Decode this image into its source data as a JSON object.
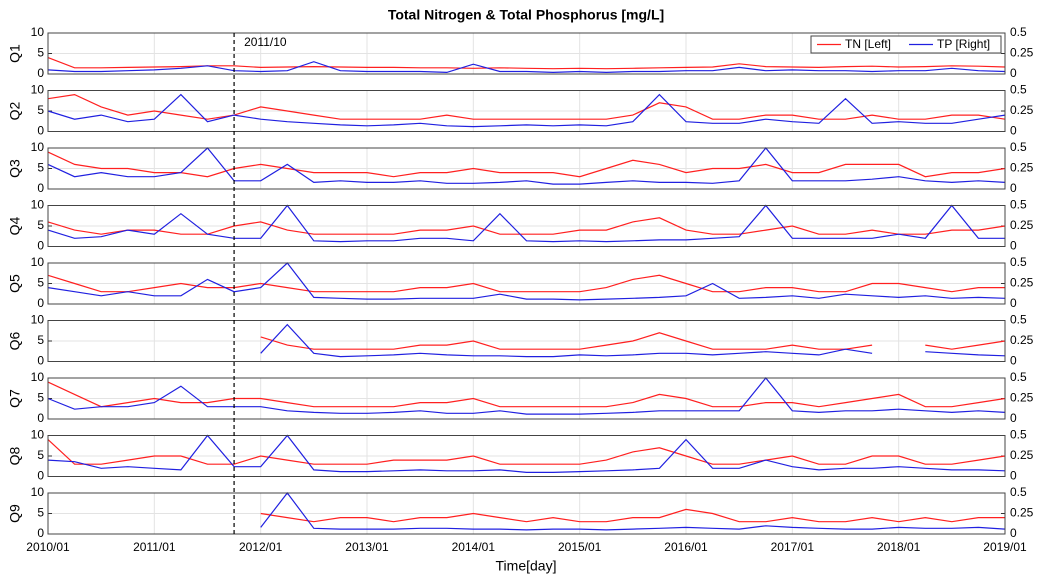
{
  "chart_data": {
    "type": "line",
    "title": "Total Nitrogen & Total Phosphorus [mg/L]",
    "xlabel": "Time[day]",
    "annotation": "2011/10",
    "x": [
      "2010/01",
      "2010/04",
      "2010/07",
      "2010/10",
      "2011/01",
      "2011/04",
      "2011/07",
      "2011/10",
      "2012/01",
      "2012/04",
      "2012/07",
      "2012/10",
      "2013/01",
      "2013/04",
      "2013/07",
      "2013/10",
      "2014/01",
      "2014/04",
      "2014/07",
      "2014/10",
      "2015/01",
      "2015/04",
      "2015/07",
      "2015/10",
      "2016/01",
      "2016/04",
      "2016/07",
      "2016/10",
      "2017/01",
      "2017/04",
      "2017/07",
      "2017/10",
      "2018/01",
      "2018/04",
      "2018/07",
      "2018/10",
      "2019/01"
    ],
    "xlim": [
      "2010/01",
      "2019/01"
    ],
    "xticks": [
      "2010/01",
      "2011/01",
      "2012/01",
      "2013/01",
      "2014/01",
      "2015/01",
      "2016/01",
      "2017/01",
      "2018/01",
      "2019/01"
    ],
    "ylim": [
      0,
      10
    ],
    "yticks": [
      0,
      5,
      10
    ],
    "y2lim": [
      0,
      0.5
    ],
    "y2ticks": [
      0,
      0.25,
      0.5
    ],
    "grid": true,
    "legend": "upper right",
    "panels": [
      {
        "label": "Q1",
        "series": [
          {
            "name": "TN [Left]",
            "color": "#ff2020",
            "values": [
              4,
              1.5,
              1.5,
              1.6,
              1.7,
              1.8,
              2,
              2,
              1.6,
              1.7,
              1.8,
              1.7,
              1.6,
              1.6,
              1.5,
              1.5,
              1.4,
              1.5,
              1.4,
              1.3,
              1.4,
              1.3,
              1.4,
              1.5,
              1.6,
              1.7,
              2.5,
              1.8,
              1.7,
              1.6,
              1.8,
              1.9,
              1.7,
              1.8,
              2,
              1.9,
              1.7
            ]
          },
          {
            "name": "TP [Right]",
            "color": "#2020e0",
            "axis": "y2",
            "values": [
              0.05,
              0.03,
              0.03,
              0.04,
              0.05,
              0.07,
              0.1,
              0.04,
              0.03,
              0.04,
              0.15,
              0.04,
              0.03,
              0.03,
              0.03,
              0.02,
              0.12,
              0.03,
              0.03,
              0.02,
              0.03,
              0.02,
              0.03,
              0.03,
              0.04,
              0.04,
              0.08,
              0.04,
              0.05,
              0.04,
              0.04,
              0.03,
              0.04,
              0.04,
              0.07,
              0.04,
              0.03
            ]
          }
        ]
      },
      {
        "label": "Q2",
        "series": [
          {
            "name": "TN [Left]",
            "color": "#ff2020",
            "values": [
              8,
              9,
              6,
              4,
              5,
              4,
              3,
              4,
              6,
              5,
              4,
              3,
              3,
              3,
              3,
              4,
              3,
              3,
              3,
              3,
              3,
              3,
              4,
              7,
              6,
              3,
              3,
              4,
              4,
              3,
              3,
              4,
              3,
              3,
              4,
              4,
              3
            ]
          },
          {
            "name": "TP [Right]",
            "color": "#2020e0",
            "axis": "y2",
            "values": [
              0.25,
              0.15,
              0.2,
              0.12,
              0.15,
              0.45,
              0.12,
              0.2,
              0.15,
              0.12,
              0.1,
              0.08,
              0.07,
              0.08,
              0.1,
              0.07,
              0.06,
              0.07,
              0.08,
              0.07,
              0.08,
              0.07,
              0.12,
              0.45,
              0.12,
              0.1,
              0.1,
              0.15,
              0.12,
              0.1,
              0.4,
              0.1,
              0.12,
              0.1,
              0.1,
              0.15,
              0.2
            ]
          }
        ]
      },
      {
        "label": "Q3",
        "series": [
          {
            "name": "TN [Left]",
            "color": "#ff2020",
            "values": [
              9,
              6,
              5,
              5,
              4,
              4,
              3,
              5,
              6,
              5,
              4,
              4,
              4,
              3,
              4,
              4,
              5,
              4,
              4,
              4,
              3,
              5,
              7,
              6,
              4,
              5,
              5,
              6,
              4,
              4,
              6,
              6,
              6,
              3,
              4,
              4,
              5
            ]
          },
          {
            "name": "TP [Right]",
            "color": "#2020e0",
            "axis": "y2",
            "values": [
              0.3,
              0.15,
              0.2,
              0.15,
              0.15,
              0.2,
              0.5,
              0.1,
              0.1,
              0.3,
              0.08,
              0.1,
              0.08,
              0.08,
              0.1,
              0.07,
              0.07,
              0.08,
              0.1,
              0.06,
              0.06,
              0.08,
              0.1,
              0.08,
              0.08,
              0.07,
              0.1,
              0.5,
              0.1,
              0.1,
              0.1,
              0.12,
              0.15,
              0.1,
              0.08,
              0.1,
              0.08
            ]
          }
        ]
      },
      {
        "label": "Q4",
        "series": [
          {
            "name": "TN [Left]",
            "color": "#ff2020",
            "values": [
              6,
              4,
              3,
              4,
              4,
              3,
              3,
              5,
              6,
              4,
              3,
              3,
              3,
              3,
              4,
              4,
              5,
              3,
              3,
              3,
              4,
              4,
              6,
              7,
              4,
              3,
              3,
              4,
              5,
              3,
              3,
              4,
              3,
              3,
              4,
              4,
              5
            ]
          },
          {
            "name": "TP [Right]",
            "color": "#2020e0",
            "axis": "y2",
            "values": [
              0.2,
              0.1,
              0.12,
              0.2,
              0.15,
              0.4,
              0.15,
              0.1,
              0.1,
              0.5,
              0.07,
              0.06,
              0.07,
              0.07,
              0.1,
              0.1,
              0.07,
              0.4,
              0.07,
              0.06,
              0.07,
              0.06,
              0.07,
              0.08,
              0.08,
              0.1,
              0.12,
              0.5,
              0.1,
              0.1,
              0.1,
              0.1,
              0.15,
              0.1,
              0.5,
              0.1,
              0.1
            ]
          }
        ]
      },
      {
        "label": "Q5",
        "series": [
          {
            "name": "TN [Left]",
            "color": "#ff2020",
            "values": [
              7,
              5,
              3,
              3,
              4,
              5,
              4,
              4,
              5,
              4,
              3,
              3,
              3,
              3,
              4,
              4,
              5,
              3,
              3,
              3,
              3,
              4,
              6,
              7,
              5,
              3,
              3,
              4,
              4,
              3,
              3,
              5,
              5,
              4,
              3,
              4,
              4
            ]
          },
          {
            "name": "TP [Right]",
            "color": "#2020e0",
            "axis": "y2",
            "values": [
              0.2,
              0.15,
              0.1,
              0.15,
              0.1,
              0.1,
              0.3,
              0.15,
              0.2,
              0.5,
              0.08,
              0.07,
              0.06,
              0.06,
              0.07,
              0.07,
              0.07,
              0.12,
              0.06,
              0.06,
              0.05,
              0.06,
              0.07,
              0.08,
              0.1,
              0.25,
              0.07,
              0.08,
              0.1,
              0.07,
              0.12,
              0.1,
              0.08,
              0.1,
              0.07,
              0.08,
              0.07
            ]
          }
        ]
      },
      {
        "label": "Q6",
        "series": [
          {
            "name": "TN [Left]",
            "color": "#ff2020",
            "values": [
              null,
              null,
              null,
              null,
              null,
              null,
              null,
              null,
              6,
              4,
              3,
              3,
              3,
              3,
              4,
              4,
              5,
              3,
              3,
              3,
              3,
              4,
              5,
              7,
              5,
              3,
              3,
              3,
              4,
              3,
              3,
              4,
              null,
              4,
              3,
              4,
              5
            ]
          },
          {
            "name": "TP [Right]",
            "color": "#2020e0",
            "axis": "y2",
            "values": [
              null,
              null,
              null,
              null,
              null,
              null,
              null,
              null,
              0.1,
              0.45,
              0.1,
              0.06,
              0.07,
              0.08,
              0.1,
              0.08,
              0.07,
              0.07,
              0.06,
              0.06,
              0.08,
              0.07,
              0.08,
              0.1,
              0.1,
              0.08,
              0.1,
              0.12,
              0.1,
              0.08,
              0.15,
              0.1,
              null,
              0.12,
              0.1,
              0.08,
              0.07
            ]
          }
        ]
      },
      {
        "label": "Q7",
        "series": [
          {
            "name": "TN [Left]",
            "color": "#ff2020",
            "values": [
              9,
              6,
              3,
              4,
              5,
              4,
              4,
              5,
              5,
              4,
              3,
              3,
              3,
              3,
              4,
              4,
              5,
              3,
              3,
              3,
              3,
              3,
              4,
              6,
              5,
              3,
              3,
              4,
              4,
              3,
              4,
              5,
              6,
              3,
              3,
              4,
              5
            ]
          },
          {
            "name": "TP [Right]",
            "color": "#2020e0",
            "axis": "y2",
            "values": [
              0.25,
              0.12,
              0.15,
              0.15,
              0.2,
              0.4,
              0.15,
              0.15,
              0.15,
              0.1,
              0.08,
              0.07,
              0.07,
              0.08,
              0.1,
              0.07,
              0.07,
              0.1,
              0.06,
              0.06,
              0.06,
              0.07,
              0.08,
              0.1,
              0.1,
              0.1,
              0.1,
              0.5,
              0.1,
              0.08,
              0.1,
              0.1,
              0.12,
              0.1,
              0.08,
              0.1,
              0.08
            ]
          }
        ]
      },
      {
        "label": "Q8",
        "series": [
          {
            "name": "TN [Left]",
            "color": "#ff2020",
            "values": [
              9,
              3,
              3,
              4,
              5,
              5,
              3,
              3,
              5,
              4,
              3,
              3,
              3,
              4,
              4,
              4,
              5,
              3,
              3,
              3,
              3,
              4,
              6,
              7,
              5,
              3,
              3,
              4,
              5,
              3,
              3,
              5,
              5,
              3,
              3,
              4,
              5
            ]
          },
          {
            "name": "TP [Right]",
            "color": "#2020e0",
            "axis": "y2",
            "values": [
              0.2,
              0.18,
              0.1,
              0.12,
              0.1,
              0.08,
              0.5,
              0.12,
              0.12,
              0.5,
              0.08,
              0.06,
              0.06,
              0.07,
              0.08,
              0.07,
              0.07,
              0.08,
              0.05,
              0.05,
              0.06,
              0.07,
              0.08,
              0.1,
              0.45,
              0.1,
              0.1,
              0.2,
              0.12,
              0.08,
              0.1,
              0.1,
              0.12,
              0.1,
              0.08,
              0.08,
              0.07
            ]
          }
        ]
      },
      {
        "label": "Q9",
        "series": [
          {
            "name": "TN [Left]",
            "color": "#ff2020",
            "values": [
              null,
              null,
              null,
              null,
              null,
              null,
              null,
              null,
              5,
              4,
              3,
              4,
              4,
              3,
              4,
              4,
              5,
              4,
              3,
              4,
              3,
              3,
              4,
              4,
              6,
              5,
              3,
              3,
              4,
              3,
              3,
              4,
              3,
              4,
              3,
              4,
              4
            ]
          },
          {
            "name": "TP [Right]",
            "color": "#2020e0",
            "axis": "y2",
            "values": [
              null,
              null,
              null,
              null,
              null,
              null,
              null,
              null,
              0.08,
              0.5,
              0.07,
              0.06,
              0.06,
              0.06,
              0.07,
              0.07,
              0.06,
              0.06,
              0.05,
              0.06,
              0.06,
              0.05,
              0.06,
              0.07,
              0.08,
              0.07,
              0.06,
              0.1,
              0.08,
              0.07,
              0.06,
              0.06,
              0.08,
              0.07,
              0.07,
              0.08,
              0.06
            ]
          }
        ]
      }
    ]
  }
}
